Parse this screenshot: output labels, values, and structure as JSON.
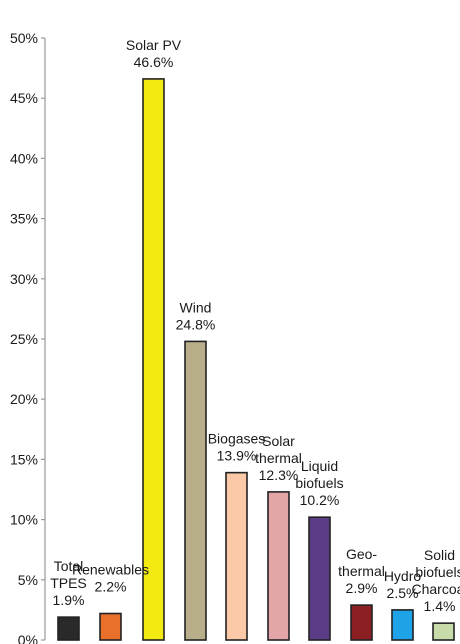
{
  "chart_data": {
    "type": "bar",
    "title": "",
    "xlabel": "",
    "ylabel": "",
    "ylim": [
      0,
      50
    ],
    "yticks": [
      "0%",
      "5%",
      "10%",
      "15%",
      "20%",
      "25%",
      "30%",
      "35%",
      "40%",
      "45%",
      "50%"
    ],
    "grid": false,
    "legend": "none",
    "categories": [
      "Total TPES",
      "Renewables",
      "Solar PV",
      "Wind",
      "Biogases",
      "Solar thermal",
      "Liquid biofuels",
      "Geo-thermal",
      "Hydro",
      "Solid biofuels Charcoal"
    ],
    "values": [
      1.9,
      2.2,
      46.6,
      24.8,
      13.9,
      12.3,
      10.2,
      2.9,
      2.5,
      1.4
    ],
    "bar_labels": [
      [
        "Total",
        "TPES",
        "1.9%"
      ],
      [
        "Renewables",
        "2.2%"
      ],
      [
        "Solar PV",
        "46.6%"
      ],
      [
        "Wind",
        "24.8%"
      ],
      [
        "Biogases",
        "13.9%"
      ],
      [
        "Solar",
        "thermal",
        "12.3%"
      ],
      [
        "Liquid",
        "biofuels",
        "10.2%"
      ],
      [
        "Geo-",
        "thermal",
        "2.9%"
      ],
      [
        "Hydro",
        "2.5%"
      ],
      [
        "Solid",
        "biofuels",
        "Charcoal",
        "1.4%"
      ]
    ],
    "colors": [
      "#2a2a2a",
      "#e8702a",
      "#f2ea10",
      "#b8ae8a",
      "#fbc8a8",
      "#e3a6a8",
      "#5a3d86",
      "#8c1f22",
      "#1fa3e8",
      "#c8dcaa"
    ]
  }
}
